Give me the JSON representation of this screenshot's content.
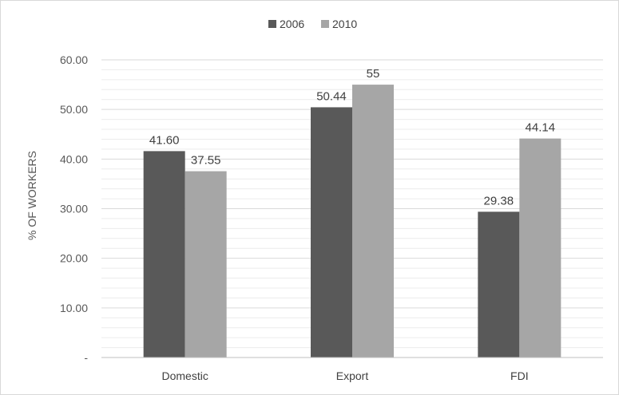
{
  "chart_data": {
    "type": "bar",
    "title": "",
    "xlabel": "",
    "ylabel": "% OF WORKERS",
    "categories": [
      "Domestic",
      "Export",
      "FDI"
    ],
    "series": [
      {
        "name": "2006",
        "values": [
          41.6,
          50.44,
          29.38
        ],
        "labels": [
          "41.60",
          "50.44",
          "29.38"
        ],
        "color": "#595959"
      },
      {
        "name": "2010",
        "values": [
          37.55,
          55,
          44.14
        ],
        "labels": [
          "37.55",
          "55",
          "44.14"
        ],
        "color": "#a6a6a6"
      }
    ],
    "ylim": [
      0,
      60
    ],
    "yticks": [
      0,
      10,
      20,
      30,
      40,
      50,
      60
    ],
    "ytick_labels": [
      "-",
      "10.00",
      "20.00",
      "30.00",
      "40.00",
      "50.00",
      "60.00"
    ],
    "grid": true,
    "legend_position": "top"
  }
}
